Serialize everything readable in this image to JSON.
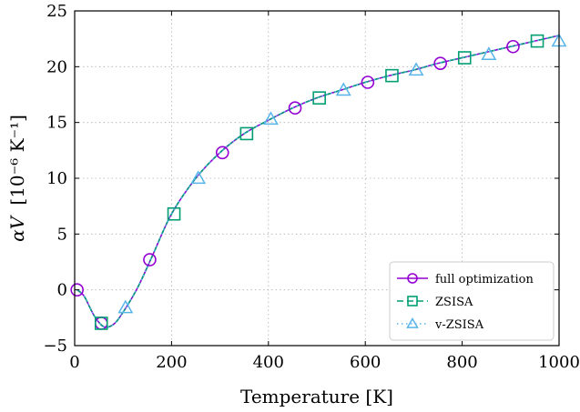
{
  "chart_data": {
    "type": "line",
    "xlabel": "Temperature [K]",
    "ylabel_main": "αV",
    "ylabel_unit": "[10⁻⁶ K⁻¹]",
    "xlim": [
      0,
      1000
    ],
    "ylim": [
      -5,
      25
    ],
    "xticks": [
      0,
      200,
      400,
      600,
      800,
      1000
    ],
    "xtick_labels": [
      "0",
      "200",
      "400",
      "600",
      "800",
      "1000"
    ],
    "yticks": [
      -5,
      0,
      5,
      10,
      15,
      20,
      25
    ],
    "ytick_labels": [
      "−5",
      "0",
      "5",
      "10",
      "15",
      "20",
      "25"
    ],
    "grid": true,
    "legend_position": "lower-right",
    "curve": {
      "x": [
        5,
        20,
        40,
        60,
        80,
        100,
        130,
        160,
        200,
        250,
        300,
        350,
        400,
        450,
        500,
        550,
        600,
        650,
        700,
        750,
        800,
        850,
        900,
        950,
        1000
      ],
      "y": [
        0,
        -0.6,
        -2.3,
        -3.3,
        -3.1,
        -2.0,
        0.2,
        3.0,
        6.8,
        10.0,
        12.3,
        14.0,
        15.2,
        16.3,
        17.2,
        17.9,
        18.6,
        19.2,
        19.7,
        20.3,
        20.8,
        21.3,
        21.8,
        22.3,
        22.8
      ]
    },
    "series": [
      {
        "name": "full optimization",
        "color": "#9400d3",
        "linestyle": "solid",
        "marker": "circle",
        "markers": {
          "x": [
            5,
            55,
            155,
            305,
            455,
            605,
            755,
            905
          ],
          "y": [
            0,
            -3.0,
            2.7,
            12.3,
            16.3,
            18.6,
            20.3,
            21.8
          ]
        }
      },
      {
        "name": "ZSISA",
        "color": "#009e73",
        "linestyle": "dashed",
        "marker": "square",
        "markers": {
          "x": [
            55,
            205,
            355,
            505,
            655,
            805,
            955
          ],
          "y": [
            -3.0,
            6.8,
            14.0,
            17.2,
            19.2,
            20.8,
            22.3
          ]
        }
      },
      {
        "name": "v-ZSISA",
        "color": "#56b4e9",
        "linestyle": "dotted",
        "marker": "triangle",
        "markers": {
          "x": [
            105,
            255,
            405,
            555,
            705,
            855,
            1000
          ],
          "y": [
            -1.6,
            10.0,
            15.3,
            17.9,
            19.7,
            21.1,
            22.3
          ]
        }
      }
    ]
  }
}
